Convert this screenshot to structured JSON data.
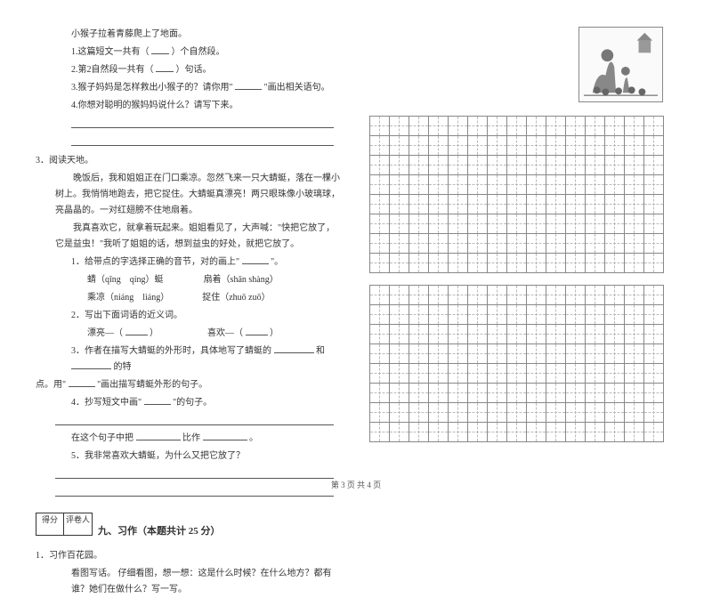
{
  "leftCol": {
    "p1": "小猴子拉着青藤爬上了地面。",
    "q1a": "1.这篇短文一共有（",
    "q1b": "）个自然段。",
    "q2a": "2.第2自然段一共有（",
    "q2b": "）句话。",
    "q3a": "3.猴子妈妈是怎样救出小猴子的？请你用\"",
    "q3b": "\"画出相关语句。",
    "q4": "4.你想对聪明的猴妈妈说什么？请写下来。",
    "reading": "3．阅读天地。",
    "para1": "晚饭后，我和姐姐正在门口乘凉。忽然飞来一只大蜻蜓，落在一棵小树上。我悄悄地跑去，把它捉住。大蜻蜓真漂亮！两只眼珠像小玻璃球，亮晶晶的。一对红翅膀不住地扇着。",
    "para2": "我真喜欢它，就拿着玩起来。姐姐看见了，大声喊：\"快把它放了，它是益虫！\"我听了姐姐的话，想到益虫的好处，就把它放了。",
    "sub1a": "1．给带点的字选择正确的音节，对的画上\"",
    "sub1b": "\"。",
    "pinyin1": "蜻（qīng　qíng）蜓",
    "pinyin2": "扇着（shān shàng）",
    "pinyin3": "乘凉（niáng　liáng）",
    "pinyin4": "捉住（zhuō zuō）",
    "sub2": "2．写出下面词语的近义词。",
    "word1a": "漂亮—（",
    "word1b": "）",
    "word2a": "喜欢—（",
    "word2b": "）",
    "sub3a": "3．作者在描写大蜻蜓的外形时，具体地写了蜻蜓的",
    "sub3b": "和",
    "sub3c": "的特",
    "sub3d": "点。用\"",
    "sub3e": "\"画出描写蜻蜓外形的句子。",
    "sub4a": "4．抄写短文中画\"",
    "sub4b": "\"的句子。",
    "comp1": "在这个句子中把",
    "comp2": "比作",
    "comp3": "。",
    "sub5": "5．我非常喜欢大蜻蜓，为什么又把它放了？",
    "scoreLabel1": "得分",
    "scoreLabel2": "评卷人",
    "sectionTitle": "九、习作（本题共计 25 分）",
    "ex1": "1．习作百花园。",
    "ex1desc": "看图写话。 仔细看图，想一想：这是什么时候？在什么地方？都有谁？她们在做什么？写一写。"
  },
  "footer": "第 3 页  共 4 页",
  "style": {
    "bg": "#ffffff",
    "text": "#333333",
    "gridBorder": "#888888",
    "gridDash": "#bbbbbb",
    "gridCols": 15,
    "gridRows1": 8,
    "gridRows2": 8
  }
}
